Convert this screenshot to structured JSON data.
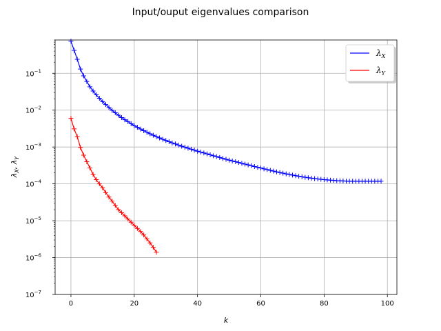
{
  "chart_data": {
    "type": "line",
    "title": "Input/ouput eigenvalues comparison",
    "xlabel": "k",
    "ylabel": "λX, λY",
    "ylabel_parts": [
      "λ",
      "X",
      ", λ",
      "Y"
    ],
    "xlim": [
      -5,
      103
    ],
    "ylim": [
      1e-07,
      0.8
    ],
    "yscale": "log",
    "grid": true,
    "legend_position": "top-right",
    "xticks": [
      0,
      20,
      40,
      60,
      80,
      100
    ],
    "xtick_labels": [
      "0",
      "20",
      "40",
      "60",
      "80",
      "100"
    ],
    "ytick_exponents": [
      -7,
      -6,
      -5,
      -4,
      -3,
      -2,
      -1
    ],
    "ytick_labels": [
      {
        "base": "10",
        "exp": "−7"
      },
      {
        "base": "10",
        "exp": "−6"
      },
      {
        "base": "10",
        "exp": "−5"
      },
      {
        "base": "10",
        "exp": "−4"
      },
      {
        "base": "10",
        "exp": "−3"
      },
      {
        "base": "10",
        "exp": "−2"
      },
      {
        "base": "10",
        "exp": "−1"
      }
    ],
    "series": [
      {
        "name": "λX",
        "legend_symbol": "λ",
        "legend_sub": "X",
        "color": "#0000ff",
        "marker": "+",
        "x": [
          0,
          1,
          2,
          3,
          4,
          5,
          6,
          7,
          8,
          9,
          10,
          11,
          12,
          13,
          14,
          15,
          16,
          17,
          18,
          19,
          20,
          21,
          22,
          23,
          24,
          25,
          26,
          27,
          28,
          29,
          30,
          31,
          32,
          33,
          34,
          35,
          36,
          37,
          38,
          39,
          40,
          41,
          42,
          43,
          44,
          45,
          46,
          47,
          48,
          49,
          50,
          51,
          52,
          53,
          54,
          55,
          56,
          57,
          58,
          59,
          60,
          61,
          62,
          63,
          64,
          65,
          66,
          67,
          68,
          69,
          70,
          71,
          72,
          73,
          74,
          75,
          76,
          77,
          78,
          79,
          80,
          81,
          82,
          83,
          84,
          85,
          86,
          87,
          88,
          89,
          90,
          91,
          92,
          93,
          94,
          95,
          96,
          97,
          98
        ],
        "y": [
          0.74,
          0.42,
          0.24,
          0.13,
          0.085,
          0.06,
          0.043,
          0.033,
          0.026,
          0.021,
          0.017,
          0.0142,
          0.0118,
          0.0099,
          0.0085,
          0.0073,
          0.0063,
          0.0055,
          0.0049,
          0.0043,
          0.0038,
          0.00343,
          0.00308,
          0.00278,
          0.00252,
          0.00229,
          0.00209,
          0.00191,
          0.00176,
          0.00162,
          0.0015,
          0.00139,
          0.00129,
          0.00121,
          0.00113,
          0.00105,
          0.00099,
          0.00093,
          0.00087,
          0.00082,
          0.00077,
          0.00073,
          0.00069,
          0.00065,
          0.000615,
          0.00058,
          0.00055,
          0.00052,
          0.00049,
          0.000465,
          0.00044,
          0.00042,
          0.0004,
          0.00038,
          0.00036,
          0.000343,
          0.000327,
          0.000311,
          0.000296,
          0.000282,
          0.000269,
          0.000256,
          0.000244,
          0.000233,
          0.000222,
          0.000212,
          0.000203,
          0.000195,
          0.000187,
          0.00018,
          0.000173,
          0.000167,
          0.000161,
          0.000156,
          0.000151,
          0.000147,
          0.000143,
          0.000139,
          0.000136,
          0.000133,
          0.00013,
          0.000128,
          0.000126,
          0.000124,
          0.000122,
          0.000121,
          0.00012,
          0.000119,
          0.000118,
          0.000118,
          0.000118,
          0.000118,
          0.000118,
          0.000118,
          0.000118,
          0.000118,
          0.000118,
          0.000118,
          0.000118
        ]
      },
      {
        "name": "λY",
        "legend_symbol": "λ",
        "legend_sub": "Y",
        "color": "#ff0000",
        "marker": "+",
        "x": [
          0,
          1,
          2,
          3,
          4,
          5,
          6,
          7,
          8,
          9,
          10,
          11,
          12,
          13,
          14,
          15,
          16,
          17,
          18,
          19,
          20,
          21,
          22,
          23,
          24,
          25,
          26,
          27
        ],
        "y": [
          0.006,
          0.0031,
          0.0019,
          0.00097,
          0.0006,
          0.0004,
          0.00027,
          0.00018,
          0.00013,
          0.0001,
          7.8e-05,
          5.8e-05,
          4.4e-05,
          3.4e-05,
          2.6e-05,
          2e-05,
          1.65e-05,
          1.36e-05,
          1.11e-05,
          9.1e-06,
          7.5e-06,
          6.2e-06,
          5.1e-06,
          4.1e-06,
          3.2e-06,
          2.5e-06,
          1.9e-06,
          1.4e-06
        ]
      }
    ]
  }
}
